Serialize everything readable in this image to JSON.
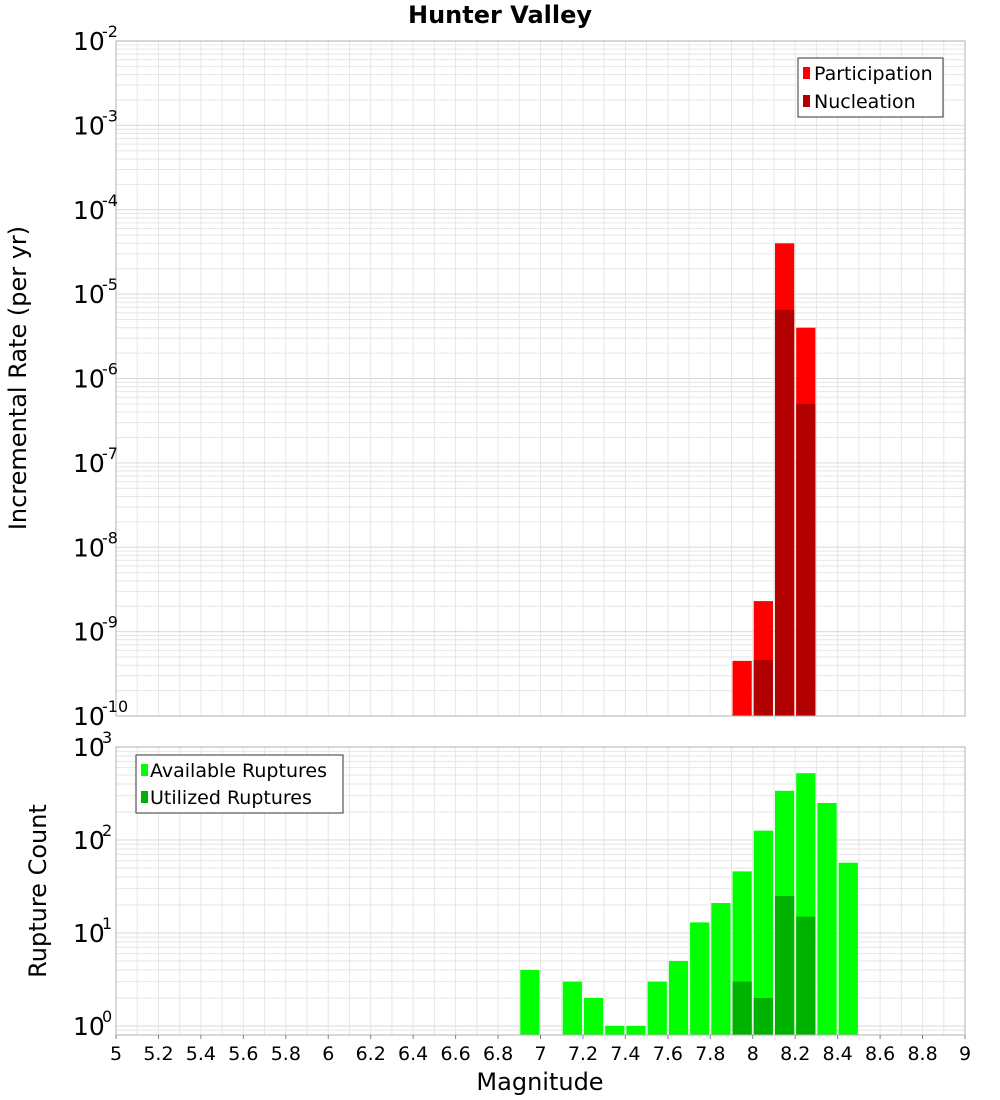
{
  "title": "Hunter Valley",
  "xlabel": "Magnitude",
  "colors": {
    "participation": "#ff0000",
    "nucleation": "#b20000",
    "available": "#00ff00",
    "utilized": "#00b200",
    "grid": "#e6e6e6",
    "frame": "#b0b0b0"
  },
  "x_ticks": [
    "5",
    "5.2",
    "5.4",
    "5.6",
    "5.8",
    "6",
    "6.2",
    "6.4",
    "6.6",
    "6.8",
    "7",
    "7.2",
    "7.4",
    "7.6",
    "7.8",
    "8",
    "8.2",
    "8.4",
    "8.6",
    "8.8",
    "9"
  ],
  "chart_data": [
    {
      "type": "bar",
      "ylabel": "Incremental Rate (per yr)",
      "yscale": "log",
      "ylim": [
        1e-10,
        0.01
      ],
      "xlim": [
        5,
        9
      ],
      "grid": true,
      "legend_position": "top-right",
      "y_ticks": [
        {
          "base": "10",
          "exp": "-10"
        },
        {
          "base": "10",
          "exp": "-9"
        },
        {
          "base": "10",
          "exp": "-8"
        },
        {
          "base": "10",
          "exp": "-7"
        },
        {
          "base": "10",
          "exp": "-6"
        },
        {
          "base": "10",
          "exp": "-5"
        },
        {
          "base": "10",
          "exp": "-4"
        },
        {
          "base": "10",
          "exp": "-3"
        },
        {
          "base": "10",
          "exp": "-2"
        }
      ],
      "series": [
        {
          "name": "Participation",
          "color_key": "participation",
          "x": [
            7.95,
            8.05,
            8.15,
            8.25
          ],
          "values": [
            4.5e-10,
            2.3e-09,
            4e-05,
            4e-06
          ]
        },
        {
          "name": "Nucleation",
          "color_key": "nucleation",
          "x": [
            8.05,
            8.15,
            8.25
          ],
          "values": [
            4.6e-10,
            6.5e-06,
            5e-07
          ]
        }
      ]
    },
    {
      "type": "bar",
      "ylabel": "Rupture Count",
      "yscale": "log",
      "ylim": [
        0.8,
        1000
      ],
      "xlim": [
        5,
        9
      ],
      "grid": true,
      "legend_position": "top-left",
      "y_ticks": [
        {
          "base": "10",
          "exp": "0"
        },
        {
          "base": "10",
          "exp": "1"
        },
        {
          "base": "10",
          "exp": "2"
        },
        {
          "base": "10",
          "exp": "3"
        }
      ],
      "series": [
        {
          "name": "Available Ruptures",
          "color_key": "available",
          "x": [
            6.95,
            7.15,
            7.25,
            7.35,
            7.45,
            7.55,
            7.65,
            7.75,
            7.85,
            7.95,
            8.05,
            8.15,
            8.25,
            8.35,
            8.45
          ],
          "values": [
            4,
            3,
            2,
            1,
            1,
            3,
            5,
            13,
            21,
            46,
            126,
            338,
            523,
            250,
            57
          ]
        },
        {
          "name": "Utilized Ruptures",
          "color_key": "utilized",
          "x": [
            7.95,
            8.05,
            8.15,
            8.25
          ],
          "values": [
            3,
            2,
            25,
            15
          ]
        }
      ]
    }
  ]
}
